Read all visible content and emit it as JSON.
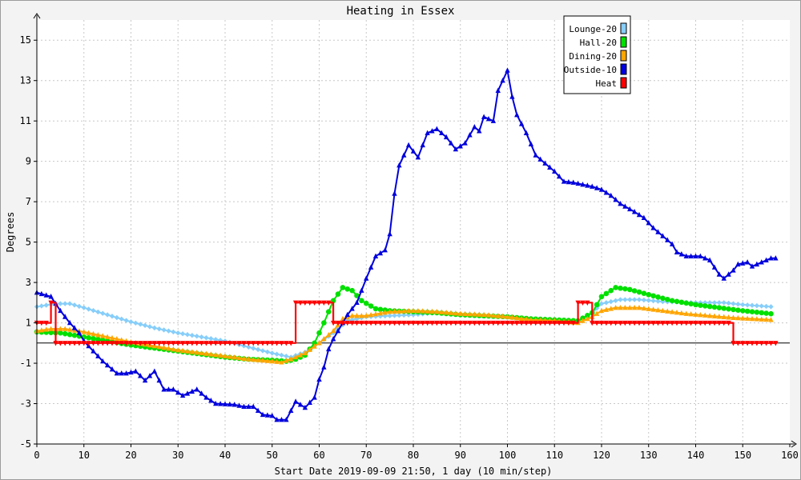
{
  "chart_data": {
    "type": "line",
    "title": "Heating in Essex",
    "xlabel": "Start Date 2019-09-09 21:50, 1 day (10 min/step)",
    "ylabel": "Degrees",
    "xlim": [
      0,
      160
    ],
    "ylim": [
      -5,
      16
    ],
    "x_ticks": [
      0,
      10,
      20,
      30,
      40,
      50,
      60,
      70,
      80,
      90,
      100,
      110,
      120,
      130,
      140,
      150,
      160
    ],
    "y_ticks": [
      -5,
      -3,
      -1,
      1,
      3,
      5,
      7,
      9,
      11,
      13,
      15
    ],
    "grid": true,
    "legend_position": "top-right",
    "series": [
      {
        "name": "Lounge-20",
        "color": "#87cefa",
        "marker": "diamond",
        "points": [
          [
            0,
            1.8
          ],
          [
            4,
            1.95
          ],
          [
            7,
            1.95
          ],
          [
            10,
            1.75
          ],
          [
            15,
            1.4
          ],
          [
            20,
            1.05
          ],
          [
            25,
            0.75
          ],
          [
            30,
            0.5
          ],
          [
            35,
            0.3
          ],
          [
            40,
            0.1
          ],
          [
            45,
            -0.2
          ],
          [
            50,
            -0.5
          ],
          [
            54,
            -0.7
          ],
          [
            57,
            -0.45
          ],
          [
            60,
            0.0
          ],
          [
            63,
            0.5
          ],
          [
            66,
            1.1
          ],
          [
            70,
            1.3
          ],
          [
            75,
            1.35
          ],
          [
            80,
            1.4
          ],
          [
            85,
            1.5
          ],
          [
            90,
            1.4
          ],
          [
            95,
            1.35
          ],
          [
            100,
            1.3
          ],
          [
            105,
            1.2
          ],
          [
            110,
            1.15
          ],
          [
            115,
            1.1
          ],
          [
            118,
            1.5
          ],
          [
            120,
            1.95
          ],
          [
            124,
            2.15
          ],
          [
            128,
            2.15
          ],
          [
            133,
            2.05
          ],
          [
            140,
            2.0
          ],
          [
            146,
            2.0
          ],
          [
            150,
            1.9
          ],
          [
            156,
            1.8
          ]
        ]
      },
      {
        "name": "Hall-20",
        "color": "#00e000",
        "marker": "circle",
        "points": [
          [
            0,
            0.55
          ],
          [
            5,
            0.5
          ],
          [
            10,
            0.3
          ],
          [
            15,
            0.1
          ],
          [
            20,
            -0.1
          ],
          [
            25,
            -0.25
          ],
          [
            30,
            -0.4
          ],
          [
            35,
            -0.55
          ],
          [
            40,
            -0.7
          ],
          [
            45,
            -0.8
          ],
          [
            50,
            -0.85
          ],
          [
            53,
            -0.9
          ],
          [
            55,
            -0.8
          ],
          [
            57,
            -0.6
          ],
          [
            59,
            0.0
          ],
          [
            61,
            1.0
          ],
          [
            63,
            2.1
          ],
          [
            65,
            2.75
          ],
          [
            67,
            2.6
          ],
          [
            69,
            2.1
          ],
          [
            72,
            1.7
          ],
          [
            75,
            1.6
          ],
          [
            80,
            1.55
          ],
          [
            85,
            1.5
          ],
          [
            90,
            1.4
          ],
          [
            95,
            1.35
          ],
          [
            100,
            1.3
          ],
          [
            105,
            1.2
          ],
          [
            110,
            1.15
          ],
          [
            115,
            1.1
          ],
          [
            118,
            1.5
          ],
          [
            120,
            2.3
          ],
          [
            123,
            2.75
          ],
          [
            126,
            2.65
          ],
          [
            130,
            2.4
          ],
          [
            135,
            2.1
          ],
          [
            140,
            1.9
          ],
          [
            145,
            1.75
          ],
          [
            150,
            1.6
          ],
          [
            156,
            1.45
          ]
        ]
      },
      {
        "name": "Dining-20",
        "color": "#ffa500",
        "marker": "triangle",
        "points": [
          [
            0,
            0.6
          ],
          [
            3,
            0.7
          ],
          [
            6,
            0.7
          ],
          [
            10,
            0.55
          ],
          [
            15,
            0.3
          ],
          [
            20,
            0.05
          ],
          [
            25,
            -0.15
          ],
          [
            30,
            -0.35
          ],
          [
            35,
            -0.5
          ],
          [
            40,
            -0.65
          ],
          [
            45,
            -0.8
          ],
          [
            50,
            -0.9
          ],
          [
            52,
            -0.95
          ],
          [
            54,
            -0.8
          ],
          [
            57,
            -0.5
          ],
          [
            60,
            0.0
          ],
          [
            63,
            0.6
          ],
          [
            65,
            1.2
          ],
          [
            67,
            1.35
          ],
          [
            70,
            1.35
          ],
          [
            75,
            1.55
          ],
          [
            80,
            1.6
          ],
          [
            85,
            1.55
          ],
          [
            90,
            1.45
          ],
          [
            95,
            1.4
          ],
          [
            100,
            1.3
          ],
          [
            105,
            1.15
          ],
          [
            110,
            1.1
          ],
          [
            115,
            1.0
          ],
          [
            118,
            1.3
          ],
          [
            120,
            1.6
          ],
          [
            123,
            1.75
          ],
          [
            128,
            1.75
          ],
          [
            133,
            1.6
          ],
          [
            138,
            1.45
          ],
          [
            143,
            1.35
          ],
          [
            148,
            1.25
          ],
          [
            152,
            1.2
          ],
          [
            156,
            1.15
          ]
        ]
      },
      {
        "name": "Outside-10",
        "color": "#0000dd",
        "marker": "triangle",
        "points": [
          [
            0,
            2.5
          ],
          [
            3,
            2.3
          ],
          [
            5,
            1.6
          ],
          [
            7,
            1.0
          ],
          [
            9,
            0.5
          ],
          [
            10,
            0.1
          ],
          [
            12,
            -0.4
          ],
          [
            14,
            -0.9
          ],
          [
            17,
            -1.5
          ],
          [
            19,
            -1.5
          ],
          [
            21,
            -1.4
          ],
          [
            23,
            -1.85
          ],
          [
            25,
            -1.4
          ],
          [
            27,
            -2.3
          ],
          [
            29,
            -2.3
          ],
          [
            31,
            -2.6
          ],
          [
            34,
            -2.3
          ],
          [
            36,
            -2.7
          ],
          [
            38,
            -3.0
          ],
          [
            42,
            -3.05
          ],
          [
            44,
            -3.15
          ],
          [
            46,
            -3.15
          ],
          [
            48,
            -3.55
          ],
          [
            50,
            -3.6
          ],
          [
            51,
            -3.8
          ],
          [
            53,
            -3.8
          ],
          [
            55,
            -2.9
          ],
          [
            57,
            -3.2
          ],
          [
            59,
            -2.7
          ],
          [
            60,
            -1.8
          ],
          [
            61,
            -1.2
          ],
          [
            62,
            -0.3
          ],
          [
            63,
            0.2
          ],
          [
            64,
            0.6
          ],
          [
            66,
            1.4
          ],
          [
            68,
            2.0
          ],
          [
            70,
            3.2
          ],
          [
            72,
            4.3
          ],
          [
            74,
            4.6
          ],
          [
            75,
            5.4
          ],
          [
            76,
            7.4
          ],
          [
            77,
            8.8
          ],
          [
            79,
            9.8
          ],
          [
            80,
            9.5
          ],
          [
            81,
            9.2
          ],
          [
            83,
            10.4
          ],
          [
            85,
            10.6
          ],
          [
            87,
            10.2
          ],
          [
            89,
            9.6
          ],
          [
            91,
            9.9
          ],
          [
            93,
            10.7
          ],
          [
            94,
            10.5
          ],
          [
            95,
            11.2
          ],
          [
            97,
            11.0
          ],
          [
            98,
            12.5
          ],
          [
            100,
            13.5
          ],
          [
            101,
            12.2
          ],
          [
            102,
            11.3
          ],
          [
            104,
            10.4
          ],
          [
            106,
            9.3
          ],
          [
            108,
            8.9
          ],
          [
            110,
            8.5
          ],
          [
            112,
            8.0
          ],
          [
            114,
            7.95
          ],
          [
            118,
            7.75
          ],
          [
            120,
            7.6
          ],
          [
            122,
            7.3
          ],
          [
            124,
            6.9
          ],
          [
            127,
            6.5
          ],
          [
            129,
            6.2
          ],
          [
            131,
            5.7
          ],
          [
            133,
            5.3
          ],
          [
            135,
            4.9
          ],
          [
            136,
            4.5
          ],
          [
            138,
            4.3
          ],
          [
            141,
            4.3
          ],
          [
            143,
            4.1
          ],
          [
            145,
            3.4
          ],
          [
            146,
            3.2
          ],
          [
            148,
            3.6
          ],
          [
            149,
            3.9
          ],
          [
            151,
            4.0
          ],
          [
            152,
            3.8
          ],
          [
            154,
            4.0
          ],
          [
            156,
            4.2
          ],
          [
            157,
            4.2
          ]
        ]
      },
      {
        "name": "Heat",
        "color": "#ff0000",
        "marker": "triangle-down",
        "points": [
          [
            0,
            1.0
          ],
          [
            3,
            1.0
          ],
          [
            3,
            2.0
          ],
          [
            4,
            2.0
          ],
          [
            4,
            0.0
          ],
          [
            55,
            0.0
          ],
          [
            55,
            2.0
          ],
          [
            63,
            2.0
          ],
          [
            63,
            1.0
          ],
          [
            115,
            1.0
          ],
          [
            115,
            2.0
          ],
          [
            118,
            2.0
          ],
          [
            118,
            1.0
          ],
          [
            148,
            1.0
          ],
          [
            148,
            0.0
          ],
          [
            157,
            0.0
          ]
        ]
      }
    ]
  }
}
